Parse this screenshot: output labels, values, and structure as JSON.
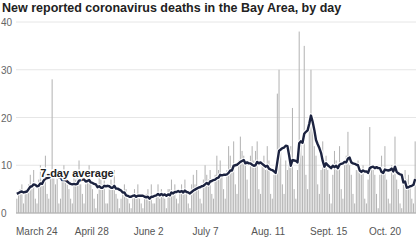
{
  "chart_data": {
    "type": "bar",
    "title": "New reported coronavirus deaths in the Bay Area, by day",
    "categories": [
      "March 24",
      null,
      null,
      null,
      null,
      null,
      null,
      null,
      null,
      null,
      null,
      null,
      null,
      null,
      null,
      null,
      null,
      null,
      null,
      null,
      null,
      null,
      null,
      null,
      null,
      null,
      null,
      null,
      null,
      null,
      null,
      null,
      null,
      null,
      null,
      "April 28",
      null,
      null,
      null,
      null,
      null,
      null,
      null,
      null,
      null,
      null,
      null,
      null,
      null,
      null,
      null,
      null,
      null,
      null,
      null,
      null,
      null,
      null,
      null,
      null,
      null,
      null,
      null,
      null,
      null,
      null,
      null,
      null,
      null,
      null,
      "June 2",
      null,
      null,
      null,
      null,
      null,
      null,
      null,
      null,
      null,
      null,
      null,
      null,
      null,
      null,
      null,
      null,
      null,
      null,
      null,
      null,
      null,
      null,
      null,
      null,
      null,
      null,
      null,
      null,
      null,
      null,
      null,
      null,
      null,
      null,
      "July 7",
      null,
      null,
      null,
      null,
      null,
      null,
      null,
      null,
      null,
      null,
      null,
      null,
      null,
      null,
      null,
      null,
      null,
      null,
      null,
      null,
      null,
      null,
      null,
      null,
      null,
      null,
      null,
      null,
      null,
      null,
      null,
      null,
      null,
      null,
      "Aug. 11",
      null,
      null,
      null,
      null,
      null,
      null,
      null,
      null,
      null,
      null,
      null,
      null,
      null,
      null,
      null,
      null,
      null,
      null,
      null,
      null,
      null,
      null,
      null,
      null,
      null,
      null,
      null,
      null,
      null,
      null,
      null,
      null,
      null,
      null,
      "Sept. 15",
      null,
      null,
      null,
      null,
      null,
      null,
      null,
      null,
      null,
      null,
      null,
      null,
      null,
      null,
      null,
      null,
      null,
      null,
      null,
      null,
      null,
      null,
      null,
      null,
      null,
      null,
      null,
      null,
      null,
      null,
      null,
      null,
      null,
      null,
      "Oct. 20",
      null,
      null,
      null,
      null,
      null,
      null,
      null,
      null,
      null,
      null,
      null,
      null,
      null,
      null,
      null,
      null,
      null,
      null,
      null,
      null,
      null,
      null,
      null,
      null,
      null,
      null,
      null
    ],
    "series": [
      {
        "type": "bar",
        "color": "#b5b5b5",
        "values": [
          3,
          4,
          5,
          6,
          2,
          4,
          5,
          6,
          8,
          5,
          9,
          3,
          2,
          7,
          10,
          7,
          9,
          12,
          4,
          3,
          8,
          28,
          9,
          6,
          8,
          2,
          3,
          7,
          10,
          8,
          6,
          5,
          3,
          2,
          9,
          7,
          9,
          11,
          6,
          4,
          2,
          6,
          8,
          10,
          7,
          5,
          3,
          1,
          4,
          9,
          7,
          6,
          8,
          2,
          2,
          5,
          7,
          6,
          9,
          4,
          3,
          1,
          3,
          4,
          6,
          5,
          3,
          2,
          1,
          4,
          5,
          4,
          6,
          3,
          2,
          1,
          3,
          4,
          5,
          3,
          6,
          2,
          2,
          4,
          6,
          3,
          5,
          4,
          3,
          1,
          5,
          5,
          7,
          4,
          6,
          3,
          2,
          4,
          6,
          5,
          7,
          4,
          2,
          1,
          6,
          8,
          6,
          9,
          5,
          3,
          2,
          7,
          10,
          8,
          7,
          9,
          4,
          3,
          8,
          12,
          9,
          11,
          8,
          5,
          3,
          9,
          14,
          12,
          10,
          15,
          6,
          4,
          11,
          16,
          13,
          12,
          10,
          7,
          3,
          12,
          14,
          11,
          13,
          15,
          5,
          4,
          10,
          12,
          9,
          14,
          11,
          4,
          3,
          8,
          10,
          25,
          30,
          13,
          6,
          4,
          11,
          9,
          12,
          14,
          22,
          5,
          3,
          9,
          38,
          15,
          12,
          35,
          8,
          5,
          18,
          30,
          20,
          14,
          12,
          6,
          4,
          9,
          15,
          10,
          12,
          9,
          4,
          2,
          8,
          13,
          11,
          9,
          14,
          5,
          3,
          10,
          12,
          17,
          10,
          8,
          4,
          2,
          9,
          11,
          9,
          8,
          10,
          3,
          2,
          7,
          18,
          10,
          9,
          8,
          4,
          1,
          8,
          12,
          9,
          14,
          7,
          3,
          2,
          10,
          8,
          16,
          7,
          5,
          2,
          1,
          6,
          9,
          7,
          8,
          6,
          3,
          2,
          15
        ]
      },
      {
        "name": "7-day average",
        "type": "line",
        "color": "#1c2340",
        "values": [
          4,
          4.2,
          4.4,
          4.5,
          4.3,
          4.4,
          4.5,
          5,
          5.5,
          5.6,
          6,
          5.9,
          5.6,
          5.7,
          6.2,
          6.1,
          6.8,
          7.2,
          7.3,
          7.4,
          7.6,
          8.6,
          8.7,
          8.3,
          7.8,
          7.5,
          7.5,
          6.9,
          6.9,
          6.9,
          6.6,
          6.3,
          6.1,
          6,
          6.1,
          6,
          6.1,
          6.8,
          6.9,
          7,
          7,
          6.6,
          6.7,
          6.9,
          6.4,
          6.3,
          6.1,
          6,
          5.4,
          5.6,
          5.3,
          5.3,
          5.7,
          5.6,
          5.7,
          5.6,
          5.3,
          5.3,
          5.7,
          5.1,
          5.1,
          4.9,
          4.7,
          4.3,
          4.3,
          3.7,
          3.6,
          3.4,
          3.4,
          3.6,
          3.7,
          3.4,
          3.6,
          3.6,
          3.6,
          3.6,
          3.4,
          3.3,
          3.4,
          3,
          3.4,
          3.4,
          3.6,
          3.7,
          4,
          3.7,
          4,
          3.7,
          3.9,
          3.6,
          3.9,
          3.7,
          4.3,
          4.1,
          4.4,
          4.4,
          4.6,
          4.4,
          4.6,
          4.3,
          4.7,
          4.4,
          4.3,
          4.1,
          4.4,
          4.7,
          4.9,
          5.1,
          5.3,
          5.4,
          5.6,
          5.7,
          6,
          6.3,
          6,
          6.6,
          6.7,
          6.9,
          7,
          7.3,
          7.4,
          8,
          7.9,
          8,
          8,
          8.1,
          8.4,
          8.9,
          8.9,
          9.9,
          10,
          10.1,
          10.4,
          10.7,
          10.9,
          11.1,
          10.4,
          10.6,
          10.4,
          10.4,
          10.1,
          9.9,
          10,
          10.7,
          10.4,
          10.6,
          10.3,
          10,
          9.7,
          9.9,
          9.3,
          9.1,
          9,
          8.7,
          8.4,
          10.7,
          13,
          13.3,
          13.6,
          13.7,
          14.1,
          14,
          12.1,
          9.9,
          11.1,
          11,
          10.9,
          10.6,
          14.6,
          15,
          14.7,
          16.6,
          17,
          17.3,
          18.7,
          20.4,
          19.1,
          17.4,
          15.3,
          14.4,
          13.6,
          12.6,
          10.9,
          9.7,
          10.4,
          10,
          9.7,
          9.4,
          9.9,
          9.6,
          9.9,
          9.4,
          10.1,
          10.3,
          10.4,
          10.7,
          10.6,
          11.4,
          11.6,
          10.6,
          10.4,
          10.3,
          10.1,
          10,
          8.9,
          8.6,
          8.9,
          8.7,
          8.7,
          8.4,
          9.4,
          9.6,
          9.7,
          9.4,
          9.6,
          9.4,
          9.4,
          8.6,
          8.4,
          9.1,
          9,
          8.9,
          9,
          9.3,
          8.7,
          9.7,
          8.6,
          8.3,
          8.1,
          8,
          6.4,
          6.6,
          5.3,
          5.4,
          5.6,
          5.7,
          5.9,
          7.1
        ]
      }
    ],
    "ylim": [
      0,
      40
    ],
    "yticks": [
      0,
      10,
      20,
      30,
      40
    ],
    "grid": true
  }
}
